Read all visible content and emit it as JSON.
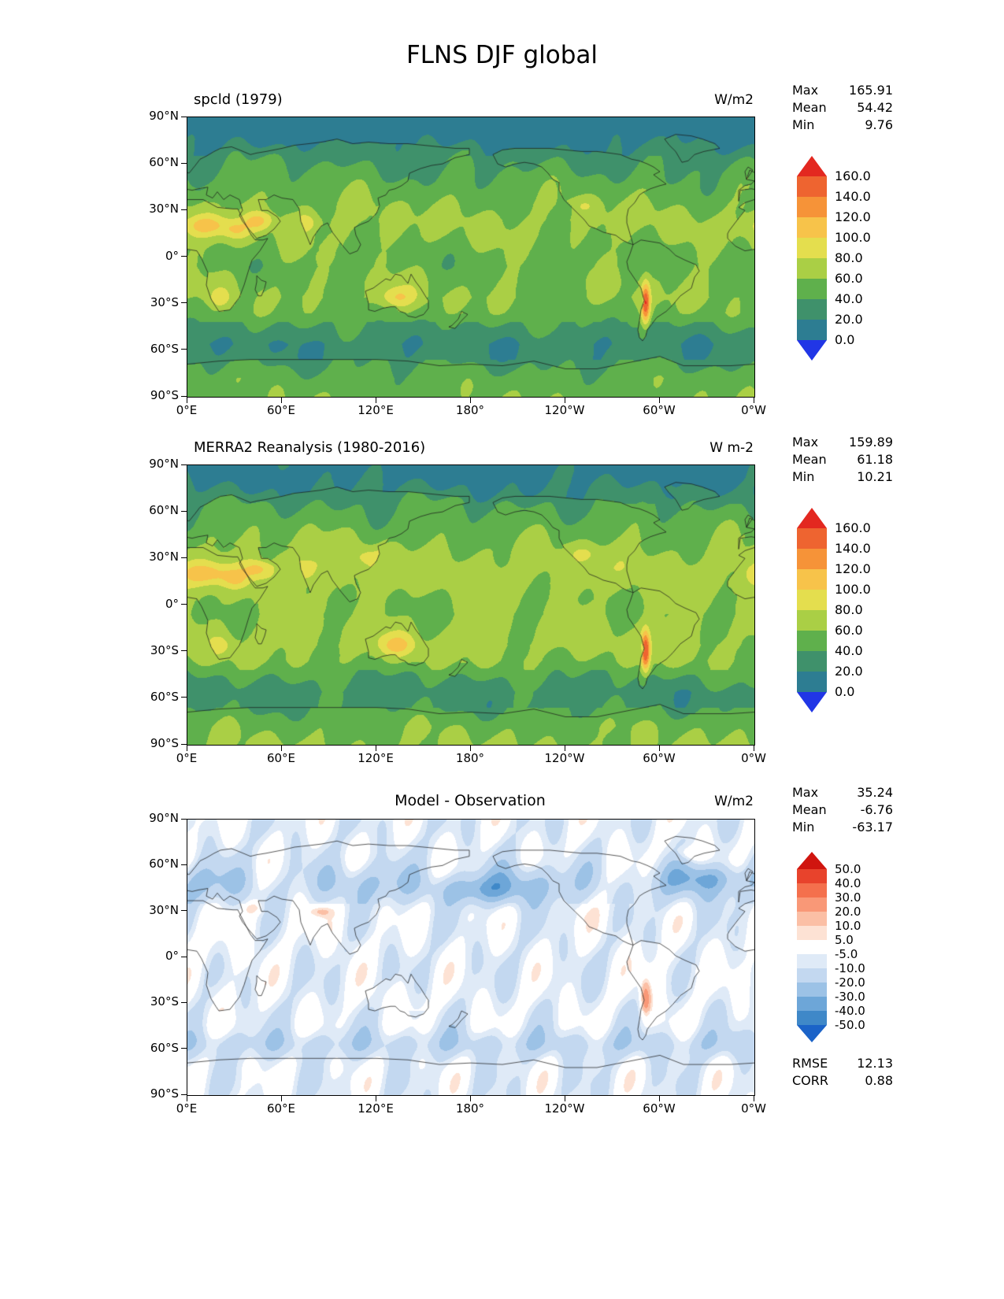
{
  "page_title": "FLNS DJF global",
  "axes": {
    "lat_ticks": [
      "90°N",
      "60°N",
      "30°N",
      "0°",
      "30°S",
      "60°S",
      "90°S"
    ],
    "lon_ticks": [
      "0°E",
      "60°E",
      "120°E",
      "180°",
      "120°W",
      "60°W",
      "0°W"
    ]
  },
  "panels": [
    {
      "title": "spcld (1979)",
      "units": "W/m2",
      "stats": [
        {
          "label": "Max",
          "value": "165.91"
        },
        {
          "label": "Mean",
          "value": "54.42"
        },
        {
          "label": "Min",
          "value": "9.76"
        }
      ],
      "colorbar": {
        "tick_labels": [
          "160.0",
          "140.0",
          "120.0",
          "100.0",
          "80.0",
          "60.0",
          "40.0",
          "20.0",
          "0.0"
        ],
        "colors_top_to_bottom": [
          "#e32820",
          "#ee6430",
          "#f69338",
          "#f7c34a",
          "#e4de4e",
          "#aacf45",
          "#5fb04c",
          "#3f916b",
          "#2d7d92",
          "#2136e6"
        ]
      }
    },
    {
      "title": "MERRA2 Reanalysis (1980-2016)",
      "units": "W m-2",
      "stats": [
        {
          "label": "Max",
          "value": "159.89"
        },
        {
          "label": "Mean",
          "value": "61.18"
        },
        {
          "label": "Min",
          "value": "10.21"
        }
      ],
      "colorbar": {
        "tick_labels": [
          "160.0",
          "140.0",
          "120.0",
          "100.0",
          "80.0",
          "60.0",
          "40.0",
          "20.0",
          "0.0"
        ],
        "colors_top_to_bottom": [
          "#e32820",
          "#ee6430",
          "#f69338",
          "#f7c34a",
          "#e4de4e",
          "#aacf45",
          "#5fb04c",
          "#3f916b",
          "#2d7d92",
          "#2136e6"
        ]
      }
    },
    {
      "title": "Model - Observation",
      "units": "W/m2",
      "stats": [
        {
          "label": "Max",
          "value": "35.24"
        },
        {
          "label": "Mean",
          "value": "-6.76"
        },
        {
          "label": "Min",
          "value": "-63.17"
        }
      ],
      "colorbar": {
        "tick_labels": [
          "50.0",
          "40.0",
          "30.0",
          "20.0",
          "10.0",
          "5.0",
          "-5.0",
          "-10.0",
          "-20.0",
          "-30.0",
          "-40.0",
          "-50.0"
        ],
        "colors_top_to_bottom": [
          "#d0150f",
          "#e8432c",
          "#f4704d",
          "#f99877",
          "#fbbfa5",
          "#fde2d4",
          "#ffffff",
          "#dfeaf7",
          "#c3d8f0",
          "#9cc2e6",
          "#6da6d8",
          "#3f88c8",
          "#1b63c8"
        ]
      },
      "footer_stats": [
        {
          "label": "RMSE",
          "value": "12.13"
        },
        {
          "label": "CORR",
          "value": "0.88"
        }
      ]
    }
  ],
  "chart_data": [
    {
      "type": "heatmap",
      "subtype": "filled_contour_map",
      "name": "model",
      "variable": "FLNS",
      "season": "DJF",
      "region": "global",
      "title": "spcld (1979)",
      "units": "W/m2",
      "x_ticks": [
        "0°E",
        "60°E",
        "120°E",
        "180°",
        "120°W",
        "60°W",
        "0°W"
      ],
      "y_ticks": [
        "90°N",
        "60°N",
        "30°N",
        "0°",
        "30°S",
        "60°S",
        "90°S"
      ],
      "x_range_deg_east": [
        0,
        360
      ],
      "y_range_deg_lat": [
        -90,
        90
      ],
      "contour_levels": [
        0,
        20,
        40,
        60,
        80,
        100,
        120,
        140,
        160
      ],
      "stats": {
        "max": 165.91,
        "mean": 54.42,
        "min": 9.76
      }
    },
    {
      "type": "heatmap",
      "subtype": "filled_contour_map",
      "name": "reference",
      "variable": "FLNS",
      "season": "DJF",
      "region": "global",
      "title": "MERRA2 Reanalysis (1980-2016)",
      "units": "W m-2",
      "x_ticks": [
        "0°E",
        "60°E",
        "120°E",
        "180°",
        "120°W",
        "60°W",
        "0°W"
      ],
      "y_ticks": [
        "90°N",
        "60°N",
        "30°N",
        "0°",
        "30°S",
        "60°S",
        "90°S"
      ],
      "x_range_deg_east": [
        0,
        360
      ],
      "y_range_deg_lat": [
        -90,
        90
      ],
      "contour_levels": [
        0,
        20,
        40,
        60,
        80,
        100,
        120,
        140,
        160
      ],
      "stats": {
        "max": 159.89,
        "mean": 61.18,
        "min": 10.21
      }
    },
    {
      "type": "heatmap",
      "subtype": "filled_contour_map",
      "name": "difference",
      "variable": "FLNS",
      "season": "DJF",
      "region": "global",
      "title": "Model - Observation",
      "units": "W/m2",
      "x_ticks": [
        "0°E",
        "60°E",
        "120°E",
        "180°",
        "120°W",
        "60°W",
        "0°W"
      ],
      "y_ticks": [
        "90°N",
        "60°N",
        "30°N",
        "0°",
        "30°S",
        "60°S",
        "90°S"
      ],
      "x_range_deg_east": [
        0,
        360
      ],
      "y_range_deg_lat": [
        -90,
        90
      ],
      "contour_levels": [
        -50,
        -40,
        -30,
        -20,
        -10,
        -5,
        5,
        10,
        20,
        30,
        40,
        50
      ],
      "stats": {
        "max": 35.24,
        "mean": -6.76,
        "min": -63.17
      },
      "rmse": 12.13,
      "corr": 0.88
    }
  ]
}
